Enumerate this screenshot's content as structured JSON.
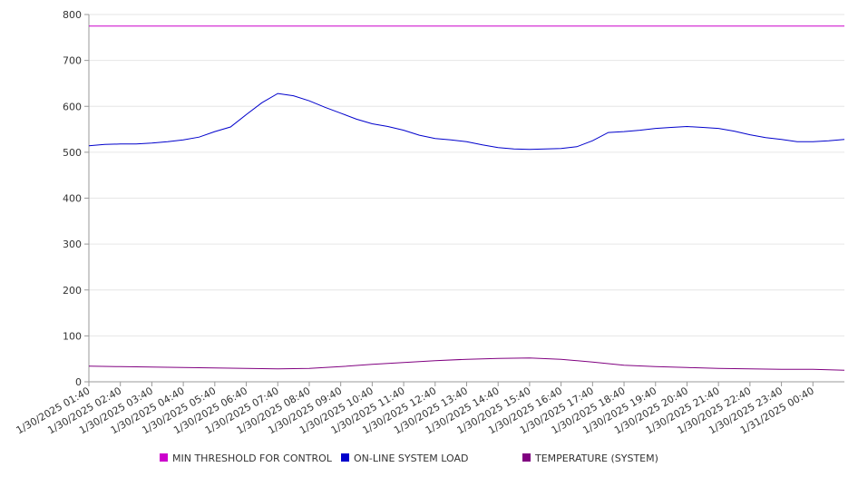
{
  "chart_data": {
    "type": "line",
    "title": "",
    "xlabel": "",
    "ylabel": "",
    "ylim": [
      0,
      800
    ],
    "y_ticks": [
      0,
      100,
      200,
      300,
      400,
      500,
      600,
      700,
      800
    ],
    "grid": "horizontal",
    "legend_position": "bottom",
    "x_tick_labels": [
      "1/30/2025 01:40",
      "1/30/2025 02:40",
      "1/30/2025 03:40",
      "1/30/2025 04:40",
      "1/30/2025 05:40",
      "1/30/2025 06:40",
      "1/30/2025 07:40",
      "1/30/2025 08:40",
      "1/30/2025 09:40",
      "1/30/2025 10:40",
      "1/30/2025 11:40",
      "1/30/2025 12:40",
      "1/30/2025 13:40",
      "1/30/2025 14:40",
      "1/30/2025 15:40",
      "1/30/2025 16:40",
      "1/30/2025 17:40",
      "1/30/2025 18:40",
      "1/30/2025 19:40",
      "1/30/2025 20:40",
      "1/30/2025 21:40",
      "1/30/2025 22:40",
      "1/30/2025 23:40",
      "1/31/2025 00:40"
    ],
    "x_start": "1/30/2025 01:40",
    "x_end": "1/31/2025 01:40",
    "series": [
      {
        "name": "MIN THRESHOLD FOR CONTROL",
        "color": "#cc00cc",
        "x": [
          "1/30/2025 01:40",
          "1/31/2025 01:40"
        ],
        "y": [
          775,
          775
        ]
      },
      {
        "name": "ON-LINE SYSTEM LOAD",
        "color": "#0000cc",
        "x": [
          "1/30/2025 01:40",
          "1/30/2025 02:10",
          "1/30/2025 02:40",
          "1/30/2025 03:10",
          "1/30/2025 03:40",
          "1/30/2025 04:10",
          "1/30/2025 04:40",
          "1/30/2025 05:10",
          "1/30/2025 05:40",
          "1/30/2025 06:10",
          "1/30/2025 06:40",
          "1/30/2025 07:10",
          "1/30/2025 07:40",
          "1/30/2025 08:10",
          "1/30/2025 08:40",
          "1/30/2025 09:10",
          "1/30/2025 09:40",
          "1/30/2025 10:10",
          "1/30/2025 10:40",
          "1/30/2025 11:10",
          "1/30/2025 11:40",
          "1/30/2025 12:10",
          "1/30/2025 12:40",
          "1/30/2025 13:10",
          "1/30/2025 13:40",
          "1/30/2025 14:10",
          "1/30/2025 14:40",
          "1/30/2025 15:10",
          "1/30/2025 15:40",
          "1/30/2025 16:10",
          "1/30/2025 16:40",
          "1/30/2025 17:10",
          "1/30/2025 17:40",
          "1/30/2025 18:10",
          "1/30/2025 18:40",
          "1/30/2025 19:10",
          "1/30/2025 19:40",
          "1/30/2025 20:10",
          "1/30/2025 20:40",
          "1/30/2025 21:10",
          "1/30/2025 21:40",
          "1/30/2025 22:10",
          "1/30/2025 22:40",
          "1/30/2025 23:10",
          "1/30/2025 23:40",
          "1/31/2025 00:10",
          "1/31/2025 00:40",
          "1/31/2025 01:10",
          "1/31/2025 01:40"
        ],
        "y": [
          514,
          517,
          518,
          518,
          520,
          523,
          527,
          533,
          545,
          555,
          582,
          608,
          628,
          623,
          612,
          598,
          585,
          572,
          562,
          556,
          548,
          537,
          530,
          527,
          523,
          516,
          510,
          507,
          506,
          507,
          508,
          512,
          525,
          543,
          545,
          548,
          552,
          554,
          556,
          554,
          552,
          546,
          538,
          532,
          528,
          523,
          523,
          525,
          528
        ]
      },
      {
        "name": "TEMPERATURE (SYSTEM)",
        "color": "#800080",
        "x": [
          "1/30/2025 01:40",
          "1/30/2025 02:40",
          "1/30/2025 03:40",
          "1/30/2025 04:40",
          "1/30/2025 05:40",
          "1/30/2025 06:40",
          "1/30/2025 07:40",
          "1/30/2025 08:40",
          "1/30/2025 09:40",
          "1/30/2025 10:40",
          "1/30/2025 11:40",
          "1/30/2025 12:40",
          "1/30/2025 13:40",
          "1/30/2025 14:40",
          "1/30/2025 15:40",
          "1/30/2025 16:40",
          "1/30/2025 17:40",
          "1/30/2025 18:40",
          "1/30/2025 19:40",
          "1/30/2025 20:40",
          "1/30/2025 21:40",
          "1/30/2025 22:40",
          "1/30/2025 23:40",
          "1/31/2025 00:40",
          "1/31/2025 01:40"
        ],
        "y": [
          34,
          33,
          32,
          31,
          30,
          29,
          28,
          29,
          33,
          38,
          42,
          46,
          49,
          51,
          52,
          49,
          43,
          36,
          33,
          31,
          29,
          28,
          27,
          27,
          25
        ]
      }
    ]
  }
}
